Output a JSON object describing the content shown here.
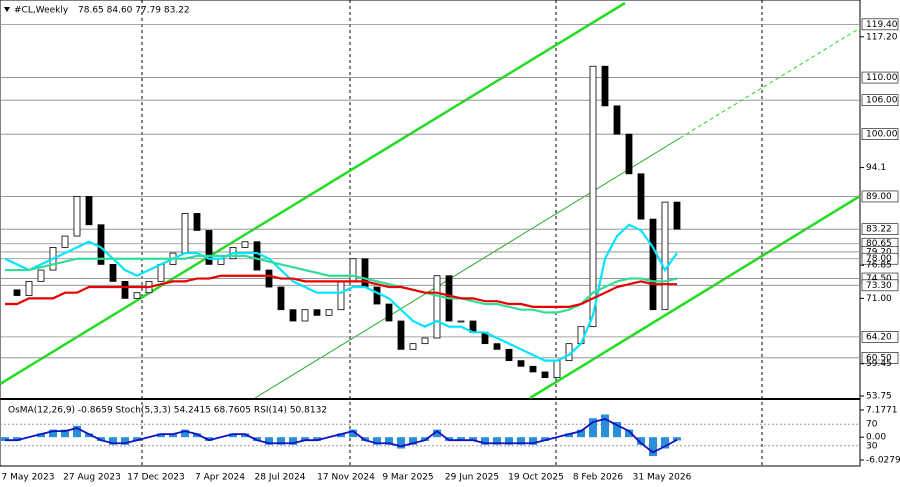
{
  "chart_data": [
    {
      "type": "candles",
      "title": "#CL,Weekly",
      "subtitle": "78.65 84.60 77.79 83.22",
      "categories": [
        null,
        null,
        null,
        null,
        null,
        null,
        null,
        null,
        null,
        null,
        null,
        null,
        null,
        null,
        null,
        null,
        null,
        null,
        null,
        null,
        null,
        null,
        null,
        null,
        null,
        null,
        null,
        null,
        null,
        null,
        null,
        null,
        null,
        null,
        null,
        null,
        null,
        null,
        null,
        null,
        null,
        null,
        null,
        null,
        null,
        null,
        null,
        null,
        null,
        null,
        null,
        null,
        null,
        null,
        null,
        null,
        null
      ],
      "x_labels": [
        "7 May 2023",
        "27 Aug 2023",
        "17 Dec 2023",
        "7 Apr 2024",
        "28 Jul 2024",
        "17 Nov 2024",
        "9 Mar 2025",
        "29 Jun 2025",
        "19 Oct 2025",
        "8 Feb 2026",
        "31 May 2026"
      ],
      "series": [
        {
          "name": "Close",
          "color": "#000000",
          "values": [
            72.5,
            71.5,
            74,
            76,
            80,
            82,
            89,
            84,
            77,
            74,
            71,
            72,
            74,
            77,
            79,
            86,
            83,
            77,
            78,
            80,
            81,
            76,
            73,
            69,
            67,
            69,
            68,
            69,
            74,
            78,
            73,
            70,
            67,
            62,
            63,
            64,
            75,
            67,
            67,
            65,
            63,
            62,
            60,
            59,
            58,
            57,
            60,
            63,
            66,
            112,
            105,
            100,
            93,
            85,
            69,
            88,
            83.22
          ]
        },
        {
          "name": "MA fast",
          "color": "#00e5ff",
          "values": [
            78,
            77,
            76,
            77,
            78,
            79,
            80,
            81,
            80,
            78,
            76,
            75,
            76,
            77,
            78,
            79,
            79,
            78,
            78,
            79,
            79,
            79,
            78,
            76,
            74,
            73,
            72,
            72,
            72,
            73,
            73,
            72,
            71,
            69,
            67,
            66,
            67,
            66,
            66,
            65,
            65,
            64,
            63,
            62,
            61,
            60,
            60,
            61,
            63,
            68,
            78,
            82,
            84,
            83,
            80,
            76,
            79
          ]
        },
        {
          "name": "MA mid",
          "color": "#33dd99",
          "values": [
            76,
            76,
            76,
            76.5,
            77,
            77.5,
            78,
            78,
            78,
            78,
            78,
            78,
            78,
            78,
            78,
            78,
            78.5,
            78.5,
            78.5,
            78.5,
            78.5,
            78,
            77.5,
            77,
            76.5,
            76,
            75.5,
            75,
            75,
            75,
            74.5,
            74,
            73.5,
            73,
            72.5,
            72,
            71.5,
            71,
            71,
            70.5,
            70,
            70,
            69.5,
            69,
            69,
            68.5,
            68.5,
            69,
            70,
            72,
            73,
            74,
            74.5,
            74.5,
            74,
            74,
            74.5
          ]
        },
        {
          "name": "MA slow",
          "color": "#e60000",
          "values": [
            70,
            70,
            71,
            71,
            71,
            72,
            72,
            73,
            73,
            73,
            73,
            73,
            73,
            73.5,
            74,
            74,
            74.5,
            74.5,
            75,
            75,
            75,
            75,
            75,
            74.5,
            74.5,
            74,
            74,
            74,
            74,
            74,
            74,
            73.5,
            73,
            73,
            72.5,
            72,
            72,
            71.5,
            71,
            71,
            70.5,
            70.5,
            70,
            70,
            69.5,
            69.5,
            69.5,
            69.5,
            70,
            71,
            72,
            73,
            73.5,
            74,
            73.5,
            73.5,
            73.5
          ]
        }
      ],
      "ylim": [
        53.4,
        123.7
      ],
      "yticks": [
        {
          "value": 117.2,
          "label": "117.20"
        },
        94.1,
        76.85,
        {
          "value": 71,
          "label": "71.00"
        },
        59.45,
        53.75
      ],
      "levels": [
        {
          "value": 119.4,
          "label": "119.40"
        },
        {
          "value": 110,
          "label": "110.00"
        },
        {
          "value": 106,
          "label": "106.00"
        },
        {
          "value": 100,
          "label": "100.00"
        },
        {
          "value": 89,
          "label": "89.00"
        },
        83.22,
        80.65,
        {
          "value": 79.2,
          "label": "79.20"
        },
        {
          "value": 78,
          "label": "78.00"
        },
        {
          "value": 74.5,
          "label": "74.50"
        },
        {
          "value": 73.3,
          "label": "73.30"
        },
        {
          "value": 64.2,
          "label": "64.20"
        },
        {
          "value": 60.5,
          "label": "60.50"
        }
      ]
    },
    {
      "type": "osma",
      "title": "OsMA(12,26,9) -0.8659 Stoch(5,3,3) 54.2415 68.7605 RSI(14) 50.8132",
      "series": [
        {
          "name": "OsMA",
          "color": "#2a8fd8",
          "values": [
            -1,
            -1,
            0,
            1,
            2,
            2,
            3,
            1,
            -1,
            -2,
            -2,
            -1,
            0,
            1,
            1,
            2,
            1,
            -1,
            0,
            1,
            1,
            -1,
            -2,
            -2,
            -2,
            -1,
            -1,
            0,
            1,
            2,
            -1,
            -2,
            -2,
            -3,
            -2,
            -1,
            2,
            -1,
            -1,
            -1,
            -2,
            -2,
            -2,
            -2,
            -2,
            -1,
            0,
            1,
            2,
            5,
            6,
            4,
            2,
            -2,
            -5,
            -3,
            -0.8659
          ]
        }
      ],
      "ylim": [
        -6.0279,
        7.1771
      ],
      "yticks": [
        7.1771,
        {
          "value": 0,
          "label": "0.00"
        },
        -6.0279
      ],
      "stoch_levels": [
        70,
        30
      ]
    }
  ]
}
